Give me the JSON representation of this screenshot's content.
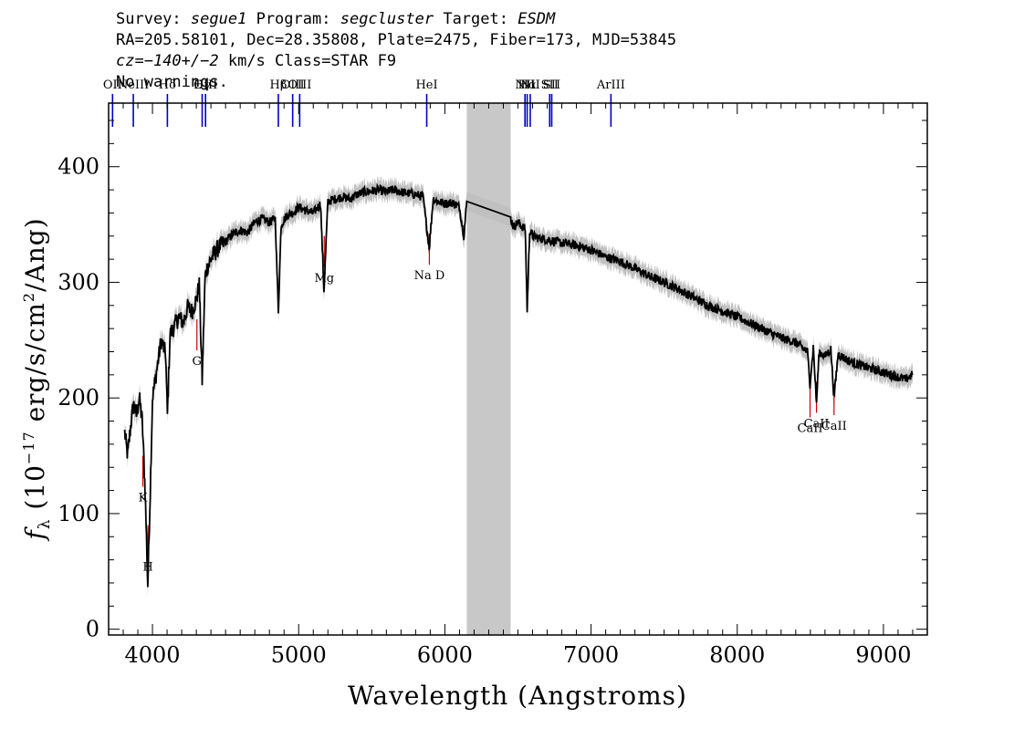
{
  "header": {
    "survey_label": "Survey:",
    "survey": "segue1",
    "program_label": "Program:",
    "program": "segcluster",
    "target_label": "Target:",
    "target": "ESDM",
    "line2": "RA=205.58101, Dec=28.35808, Plate=2475, Fiber=173, MJD=53845",
    "cz_label": "cz=",
    "cz_value": "−140+/−2",
    "cz_rest": " km/s Class=STAR F9",
    "line4": "No warnings."
  },
  "chart_data": {
    "type": "line",
    "xlabel": "Wavelength (Angstroms)",
    "ylabel": "fλ (10^-17 erg/s/cm^2/Ang)",
    "xlim": [
      3700,
      9300
    ],
    "ylim": [
      -5,
      455
    ],
    "x_ticks": [
      4000,
      5000,
      6000,
      7000,
      8000,
      9000
    ],
    "y_ticks": [
      0,
      100,
      200,
      300,
      400
    ],
    "masked_region": [
      6150,
      6450
    ],
    "colors": {
      "spectrum": "#000000",
      "error_band": "#c0c0c0",
      "emission": "#0000cc",
      "absorption": "#cc0000",
      "mask": "#c8c8c8"
    },
    "series": [
      {
        "x": [
          3810,
          3830,
          3850,
          3870,
          3890,
          3910,
          3930,
          3950,
          3968,
          3985,
          4000,
          4030,
          4060,
          4090,
          4102,
          4120,
          4150,
          4180,
          4210,
          4240,
          4270,
          4300,
          4320,
          4340,
          4360,
          4380,
          4400,
          4450,
          4500,
          4550,
          4600,
          4650,
          4700,
          4750,
          4800,
          4840,
          4861,
          4880,
          4920,
          4960,
          5000,
          5050,
          5100,
          5150,
          5173,
          5200,
          5250,
          5300,
          5350,
          5400,
          5450,
          5500,
          5550,
          5600,
          5650,
          5700,
          5750,
          5800,
          5850,
          5893,
          5920,
          5950,
          6000,
          6050,
          6100,
          6130,
          6150,
          6450,
          6470,
          6500,
          6530,
          6550,
          6563,
          6580,
          6600,
          6650,
          6700,
          6800,
          6900,
          7000,
          7100,
          7200,
          7300,
          7400,
          7500,
          7600,
          7700,
          7800,
          7900,
          8000,
          8100,
          8200,
          8300,
          8400,
          8480,
          8498,
          8520,
          8542,
          8560,
          8600,
          8640,
          8662,
          8690,
          8750,
          8800,
          8850,
          8900,
          8950,
          9000,
          9050,
          9100,
          9150,
          9200
        ],
        "y": [
          170,
          150,
          175,
          195,
          185,
          200,
          180,
          120,
          38,
          120,
          200,
          225,
          250,
          238,
          185,
          255,
          262,
          270,
          265,
          278,
          275,
          285,
          298,
          215,
          305,
          315,
          320,
          330,
          335,
          342,
          345,
          343,
          352,
          355,
          352,
          355,
          275,
          350,
          358,
          360,
          365,
          362,
          360,
          368,
          292,
          370,
          372,
          374,
          372,
          376,
          378,
          379,
          380,
          378,
          380,
          378,
          377,
          376,
          374,
          330,
          372,
          370,
          368,
          369,
          365,
          340,
          370,
          355,
          348,
          352,
          348,
          346,
          275,
          345,
          340,
          338,
          337,
          334,
          332,
          328,
          322,
          318,
          312,
          305,
          300,
          294,
          287,
          280,
          275,
          270,
          264,
          258,
          252,
          248,
          240,
          212,
          244,
          195,
          240,
          236,
          242,
          200,
          238,
          233,
          230,
          228,
          226,
          224,
          222,
          220,
          218,
          216,
          220
        ]
      }
    ],
    "emission_lines": [
      {
        "label": "OII",
        "wave": 3727
      },
      {
        "label": "NeIII",
        "wave": 3869
      },
      {
        "label": "Hδ",
        "wave": 4102
      },
      {
        "label": "Hγ",
        "wave": 4340
      },
      {
        "label": "OIII",
        "wave": 4363
      },
      {
        "label": "Hβ",
        "wave": 4861
      },
      {
        "label": "OIII",
        "wave": 4959
      },
      {
        "label": "OIII",
        "wave": 5007
      },
      {
        "label": "HeI",
        "wave": 5876
      },
      {
        "label": "NII",
        "wave": 6548
      },
      {
        "label": "Hα",
        "wave": 6563
      },
      {
        "label": "NII",
        "wave": 6584
      },
      {
        "label": "SII",
        "wave": 6717
      },
      {
        "label": "SII",
        "wave": 6731
      },
      {
        "label": "ArIII",
        "wave": 7136
      }
    ],
    "absorption_lines": [
      {
        "label": "K",
        "wave": 3934
      },
      {
        "label": "H",
        "wave": 3969
      },
      {
        "label": "G",
        "wave": 4304
      },
      {
        "label": "Mg",
        "wave": 5175
      },
      {
        "label": "Na D",
        "wave": 5894
      },
      {
        "label": "CaII",
        "wave": 8498
      },
      {
        "label": "CaII",
        "wave": 8542
      },
      {
        "label": "CaII",
        "wave": 8662
      }
    ]
  }
}
